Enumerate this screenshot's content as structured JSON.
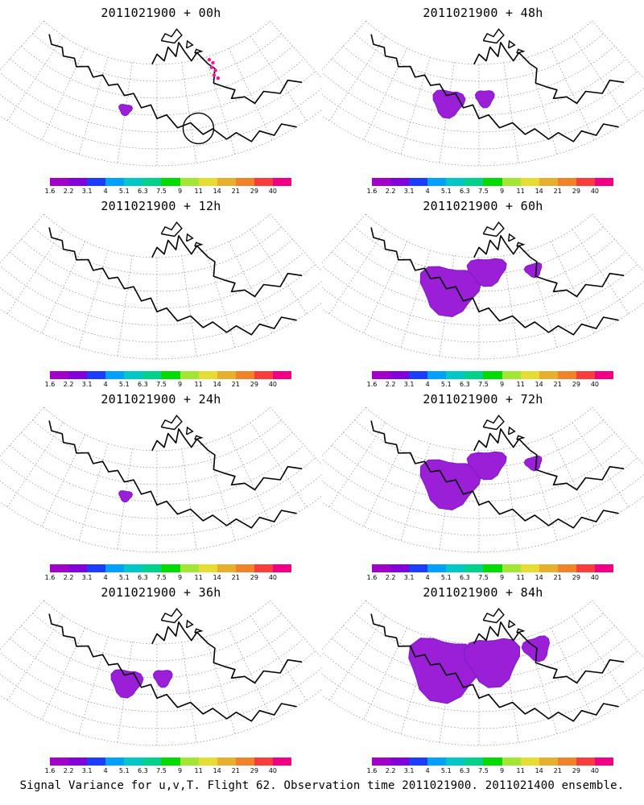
{
  "panels": [
    {
      "title": "2011021900 + 00h",
      "lead": "00h",
      "signal": "small",
      "blobs": []
    },
    {
      "title": "2011021900 + 12h",
      "lead": "12h",
      "signal": "none",
      "blobs": []
    },
    {
      "title": "2011021900 + 24h",
      "lead": "24h",
      "signal": "small",
      "blobs": []
    },
    {
      "title": "2011021900 + 36h",
      "lead": "36h",
      "signal": "moderate",
      "blobs": []
    },
    {
      "title": "2011021900 + 48h",
      "lead": "48h",
      "signal": "moderate",
      "blobs": []
    },
    {
      "title": "2011021900 + 60h",
      "lead": "60h",
      "signal": "large",
      "blobs": []
    },
    {
      "title": "2011021900 + 72h",
      "lead": "72h",
      "signal": "large",
      "blobs": []
    },
    {
      "title": "2011021900 + 84h",
      "lead": "84h",
      "signal": "very large",
      "blobs": []
    }
  ],
  "colorbar": {
    "colors": [
      "#a000c8",
      "#8200dc",
      "#1e3cff",
      "#00a0ff",
      "#00c8c8",
      "#00d28c",
      "#00dc00",
      "#a0e632",
      "#e6dc32",
      "#e6af2d",
      "#f08228",
      "#fa3c3c",
      "#f00082"
    ],
    "labels": [
      "1.6",
      "2.2",
      "3.1",
      "4",
      "5.1",
      "6.3",
      "7.5",
      "9",
      "11",
      "14",
      "21",
      "29",
      "40"
    ]
  },
  "colors": {
    "signal_fill": "#9b1fd6",
    "signal_fill_dark": "#7a1ac8",
    "marker": "#ff1493",
    "grid": "#8c8c8c",
    "coast": "#000000"
  },
  "footer": "Signal Variance for u,v,T. Flight 62. Observation time 2011021900. 2011021400 ensemble."
}
